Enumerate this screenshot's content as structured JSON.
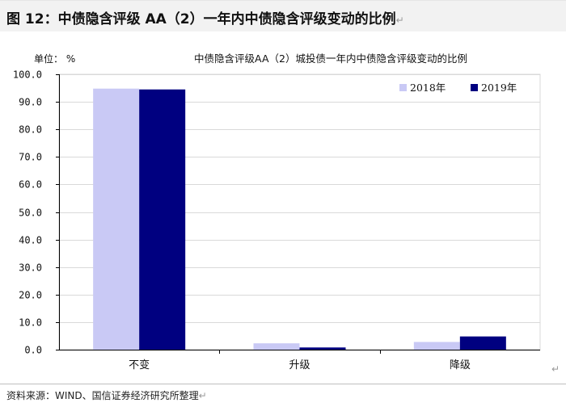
{
  "figure": {
    "title": "图 12：中债隐含评级 AA（2）一年内中债隐含评级变动的比例",
    "source": "资料来源：WIND、国信证券经济研究所整理"
  },
  "chart_data": {
    "type": "bar",
    "title": "中债隐含评级AA（2）城投债一年内中债隐含评级变动的比例",
    "unit_label": "单位： %",
    "categories": [
      "不变",
      "升级",
      "降级"
    ],
    "series": [
      {
        "name": "2018年",
        "values": [
          94.8,
          2.3,
          2.8
        ],
        "color": "#c9c9f5"
      },
      {
        "name": "2019年",
        "values": [
          94.5,
          0.8,
          4.8
        ],
        "color": "#000080"
      }
    ],
    "ylim": [
      0,
      100
    ],
    "yticks": [
      "0.0",
      "10.0",
      "20.0",
      "30.0",
      "40.0",
      "50.0",
      "60.0",
      "70.0",
      "80.0",
      "90.0",
      "100.0"
    ],
    "grid": true,
    "legend_position": "top-right"
  }
}
